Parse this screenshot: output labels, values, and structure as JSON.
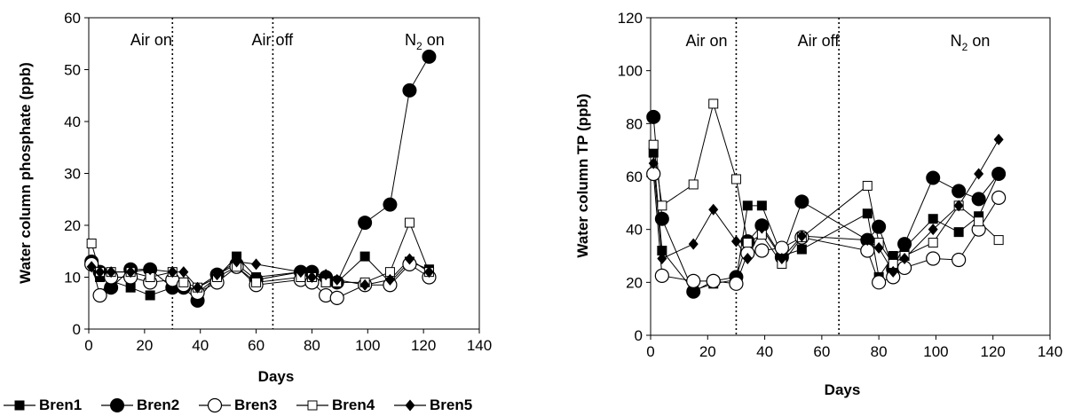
{
  "chart_data": [
    {
      "type": "scatter",
      "ylabel": "Water column phosphate (ppb)",
      "xlabel": "Days",
      "xlim": [
        0,
        140
      ],
      "ylim": [
        0,
        60
      ],
      "xticks": [
        "0",
        "20",
        "40",
        "60",
        "80",
        "100",
        "120",
        "140"
      ],
      "yticks": [
        "0",
        "10",
        "20",
        "30",
        "40",
        "50",
        "60"
      ],
      "phases": [
        {
          "label": "Air on",
          "sub": "",
          "suffix": ""
        },
        {
          "label": "Air off",
          "sub": "",
          "suffix": ""
        },
        {
          "label": "N",
          "sub": "2",
          "suffix": " on"
        }
      ],
      "phase_boundaries": [
        30,
        66
      ],
      "series": [
        {
          "name": "Bren1",
          "x": [
            1,
            4,
            15,
            22,
            30,
            34,
            39,
            46,
            53,
            60,
            76,
            80,
            85,
            89,
            99,
            108,
            115,
            122
          ],
          "y": [
            12.5,
            10,
            8,
            6.5,
            8,
            9,
            7,
            10,
            14,
            10,
            11,
            11,
            9,
            9,
            14,
            9,
            13,
            11.5
          ]
        },
        {
          "name": "Bren2",
          "x": [
            1,
            4,
            8,
            15,
            22,
            30,
            34,
            39,
            46,
            53,
            60,
            76,
            80,
            85,
            89,
            99,
            108,
            115,
            122
          ],
          "y": [
            13,
            11,
            8,
            11.5,
            11.5,
            8,
            8,
            5.5,
            10.5,
            12.5,
            9.5,
            11,
            11,
            10,
            9,
            20.5,
            24,
            46,
            52.5
          ]
        },
        {
          "name": "Bren3",
          "x": [
            1,
            4,
            8,
            15,
            22,
            30,
            34,
            39,
            46,
            53,
            60,
            76,
            80,
            85,
            89,
            99,
            108,
            115,
            122
          ],
          "y": [
            12.5,
            6.5,
            10,
            10,
            9,
            9.5,
            8.5,
            7,
            9,
            12,
            8.5,
            9.5,
            9,
            6.5,
            6,
            8.5,
            8.5,
            12.5,
            10
          ]
        },
        {
          "name": "Bren4",
          "x": [
            1,
            4,
            8,
            15,
            22,
            30,
            34,
            39,
            46,
            53,
            60,
            76,
            80,
            85,
            89,
            99,
            108,
            115,
            122
          ],
          "y": [
            16.5,
            11,
            11,
            11,
            10,
            11,
            9,
            8,
            10,
            12,
            9,
            10,
            10,
            9,
            9,
            9,
            11,
            20.5,
            11
          ]
        },
        {
          "name": "Bren5",
          "x": [
            1,
            4,
            8,
            15,
            22,
            30,
            34,
            39,
            46,
            53,
            60,
            76,
            80,
            85,
            89,
            99,
            108,
            115,
            122
          ],
          "y": [
            12,
            11,
            11,
            11,
            11.5,
            11,
            11,
            8,
            10.5,
            13,
            12.5,
            11,
            10,
            10.5,
            9.5,
            8.5,
            9.5,
            13.5,
            11
          ]
        }
      ]
    },
    {
      "type": "scatter",
      "ylabel": "Water column TP (ppb)",
      "xlabel": "Days",
      "xlim": [
        0,
        140
      ],
      "ylim": [
        0,
        120
      ],
      "xticks": [
        "0",
        "20",
        "40",
        "60",
        "80",
        "100",
        "120",
        "140"
      ],
      "yticks": [
        "0",
        "20",
        "40",
        "60",
        "80",
        "100",
        "120"
      ],
      "phases": [
        {
          "label": "Air on",
          "sub": "",
          "suffix": ""
        },
        {
          "label": "Air off",
          "sub": "",
          "suffix": ""
        },
        {
          "label": "N",
          "sub": "2",
          "suffix": " on"
        }
      ],
      "phase_boundaries": [
        30,
        66
      ],
      "series": [
        {
          "name": "Bren1",
          "x": [
            1,
            4,
            15,
            22,
            30,
            34,
            39,
            46,
            53,
            76,
            80,
            85,
            89,
            99,
            108,
            115,
            122
          ],
          "y": [
            69,
            32,
            17,
            19.5,
            21,
            49,
            49,
            30,
            32.5,
            46,
            22,
            30,
            33,
            44,
            39,
            45,
            61
          ]
        },
        {
          "name": "Bren2",
          "x": [
            1,
            4,
            15,
            22,
            30,
            34,
            39,
            46,
            53,
            76,
            80,
            85,
            89,
            99,
            108,
            115,
            122
          ],
          "y": [
            82.5,
            44,
            16.5,
            20.5,
            22,
            35.5,
            41.5,
            29.5,
            50.5,
            36,
            41,
            25,
            34.5,
            59.5,
            54.5,
            51.5,
            61
          ]
        },
        {
          "name": "Bren3",
          "x": [
            1,
            4,
            15,
            22,
            30,
            34,
            39,
            46,
            53,
            76,
            80,
            85,
            89,
            99,
            108,
            115,
            122
          ],
          "y": [
            61,
            22.5,
            20.5,
            20.5,
            19.5,
            31,
            32,
            33,
            37,
            32,
            20,
            22,
            25.5,
            29,
            28.5,
            40,
            52
          ]
        },
        {
          "name": "Bren4",
          "x": [
            1,
            4,
            15,
            22,
            30,
            34,
            39,
            46,
            53,
            76,
            80,
            85,
            89,
            99,
            108,
            115,
            122
          ],
          "y": [
            72,
            49,
            57,
            87.5,
            59,
            35,
            38,
            27,
            37,
            56.5,
            35,
            27,
            30,
            35,
            49,
            43,
            36
          ]
        },
        {
          "name": "Bren5",
          "x": [
            1,
            4,
            15,
            22,
            30,
            34,
            39,
            46,
            53,
            76,
            80,
            85,
            89,
            99,
            108,
            115,
            122
          ],
          "y": [
            65,
            29,
            34.5,
            47.5,
            35.5,
            29,
            40.5,
            29,
            37.5,
            36,
            33,
            24,
            29,
            40,
            49,
            61,
            74
          ]
        }
      ]
    }
  ],
  "legend": [
    {
      "name": "Bren1",
      "marker": "square-filled"
    },
    {
      "name": "Bren2",
      "marker": "circle-filled"
    },
    {
      "name": "Bren3",
      "marker": "circle-open"
    },
    {
      "name": "Bren4",
      "marker": "square-open"
    },
    {
      "name": "Bren5",
      "marker": "diamond-filled"
    }
  ]
}
